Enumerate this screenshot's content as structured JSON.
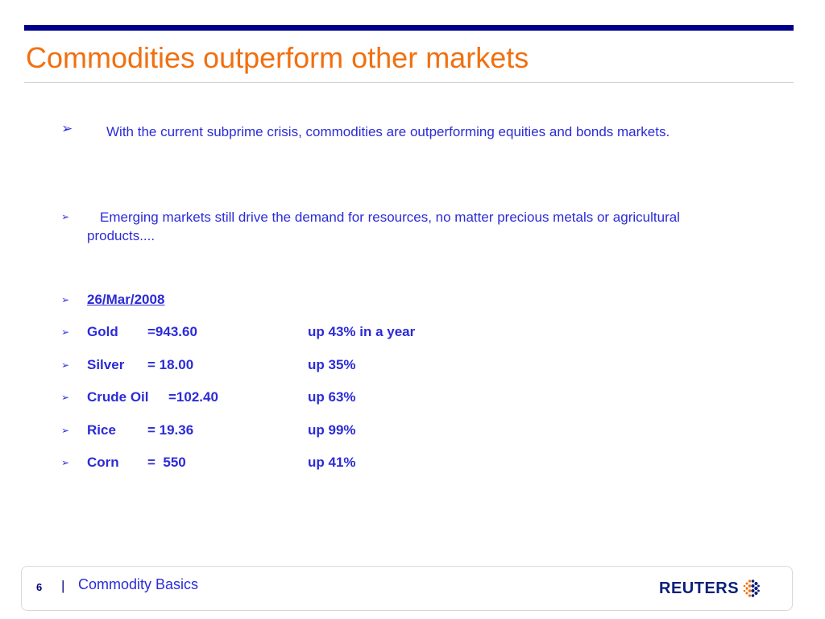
{
  "slide": {
    "title": "Commodities outperform other markets",
    "bullets": [
      {
        "text": "With the current subprime crisis, commodities are outperforming equities and bonds markets."
      },
      {
        "text": "Emerging markets still drive the demand for resources, no matter precious metals or agricultural products...."
      }
    ],
    "date": "26/Mar/2008",
    "prices": [
      {
        "name": "Gold",
        "value": "=943.60",
        "change": "up 43% in a year"
      },
      {
        "name": "Silver",
        "value": "= 18.00",
        "change": "up 35%"
      },
      {
        "name": "Crude Oil",
        "value": "=102.40",
        "change": "up 63%"
      },
      {
        "name": "Rice",
        "value": "= 19.36",
        "change": "up 99%"
      },
      {
        "name": "Corn",
        "value": "=  550",
        "change": "up 41%"
      }
    ]
  },
  "footer": {
    "page_number": "6",
    "separator": "|",
    "section": "Commodity Basics",
    "logo_text": "REUTERS"
  },
  "colors": {
    "title": "#f07010",
    "text": "#2b2bd8",
    "rule": "#00008b"
  },
  "icons": {
    "bullet": "arrowhead-bullet-icon",
    "logo": "reuters-dot-logo-icon"
  }
}
